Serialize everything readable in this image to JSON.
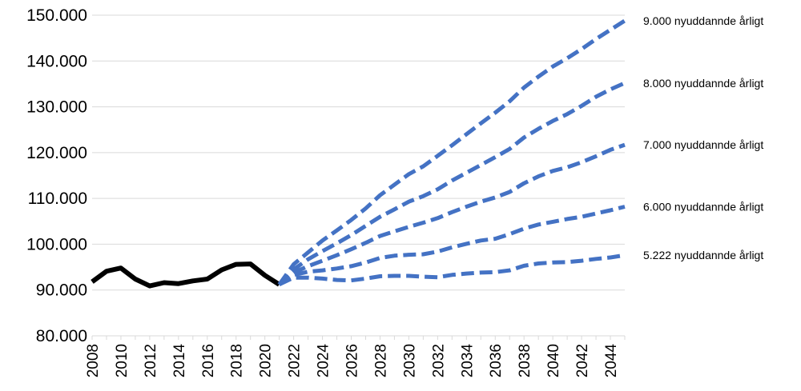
{
  "chart_data": {
    "type": "line",
    "title": "",
    "xlabel": "",
    "ylabel": "",
    "xlim": [
      2008,
      2045
    ],
    "ylim": [
      80000,
      150000
    ],
    "y_ticks": [
      80000,
      90000,
      100000,
      110000,
      120000,
      130000,
      140000,
      150000
    ],
    "y_tick_labels": [
      "80.000",
      "90.000",
      "100.000",
      "110.000",
      "120.000",
      "130.000",
      "140.000",
      "150.000"
    ],
    "x_ticks": [
      2008,
      2010,
      2012,
      2014,
      2016,
      2018,
      2020,
      2022,
      2024,
      2026,
      2028,
      2030,
      2032,
      2034,
      2036,
      2038,
      2040,
      2042,
      2044
    ],
    "grid": true,
    "legend": "none",
    "colors": {
      "history": "#000000",
      "projection": "#4472C4",
      "grid": "#D9D9D9"
    },
    "series": [
      {
        "style": "solid",
        "x": [
          2008,
          2009,
          2010,
          2011,
          2012,
          2013,
          2014,
          2015,
          2016,
          2017,
          2018,
          2019,
          2020,
          2021
        ],
        "values": [
          91800,
          94100,
          94800,
          92400,
          90900,
          91600,
          91400,
          92000,
          92400,
          94400,
          95600,
          95700,
          93200,
          91200
        ]
      },
      {
        "name": "9.000 nyuddannde årligt",
        "style": "dashed",
        "x": [
          2021,
          2022,
          2023,
          2024,
          2025,
          2026,
          2027,
          2028,
          2029,
          2030,
          2031,
          2032,
          2033,
          2034,
          2035,
          2036,
          2037,
          2038,
          2039,
          2040,
          2041,
          2042,
          2043,
          2044,
          2045
        ],
        "values": [
          91200,
          95600,
          98200,
          100800,
          103000,
          105300,
          107800,
          110700,
          113000,
          115300,
          117000,
          119300,
          121600,
          124000,
          126400,
          128700,
          131200,
          134200,
          136600,
          138800,
          140600,
          142600,
          144800,
          146800,
          148800
        ]
      },
      {
        "name": "8.000 nyuddannde årligt",
        "style": "dashed",
        "x": [
          2021,
          2022,
          2023,
          2024,
          2025,
          2026,
          2027,
          2028,
          2029,
          2030,
          2031,
          2032,
          2033,
          2034,
          2035,
          2036,
          2037,
          2038,
          2039,
          2040,
          2041,
          2042,
          2043,
          2044,
          2045
        ],
        "values": [
          91200,
          94500,
          96700,
          98500,
          100200,
          102000,
          104000,
          106000,
          107600,
          109300,
          110500,
          112000,
          113900,
          115600,
          117300,
          119000,
          120800,
          123300,
          125200,
          126900,
          128400,
          130200,
          132200,
          133800,
          135200
        ]
      },
      {
        "name": "7.000 nyuddannde årligt",
        "style": "dashed",
        "x": [
          2021,
          2022,
          2023,
          2024,
          2025,
          2026,
          2027,
          2028,
          2029,
          2030,
          2031,
          2032,
          2033,
          2034,
          2035,
          2036,
          2037,
          2038,
          2039,
          2040,
          2041,
          2042,
          2043,
          2044,
          2045
        ],
        "values": [
          91200,
          93800,
          95200,
          96400,
          97600,
          98900,
          100300,
          101800,
          102800,
          103800,
          104700,
          105700,
          107000,
          108200,
          109300,
          110200,
          111400,
          113300,
          114800,
          116000,
          116800,
          117900,
          119200,
          120600,
          121700
        ]
      },
      {
        "name": "6.000 nyuddannde årligt",
        "style": "dashed",
        "x": [
          2021,
          2022,
          2023,
          2024,
          2025,
          2026,
          2027,
          2028,
          2029,
          2030,
          2031,
          2032,
          2033,
          2034,
          2035,
          2036,
          2037,
          2038,
          2039,
          2040,
          2041,
          2042,
          2043,
          2044,
          2045
        ],
        "values": [
          91200,
          93300,
          94000,
          94300,
          94700,
          95200,
          96000,
          97000,
          97500,
          97700,
          97800,
          98400,
          99300,
          100100,
          100800,
          101200,
          102200,
          103400,
          104300,
          104900,
          105500,
          106000,
          106700,
          107400,
          108200
        ]
      },
      {
        "name": "5.222 nyuddannde årligt",
        "style": "dashed",
        "x": [
          2021,
          2022,
          2023,
          2024,
          2025,
          2026,
          2027,
          2028,
          2029,
          2030,
          2031,
          2032,
          2033,
          2034,
          2035,
          2036,
          2037,
          2038,
          2039,
          2040,
          2041,
          2042,
          2043,
          2044,
          2045
        ],
        "values": [
          91200,
          92700,
          92700,
          92500,
          92200,
          92100,
          92500,
          93000,
          93100,
          93100,
          92900,
          92800,
          93300,
          93600,
          93800,
          93900,
          94300,
          95300,
          95800,
          96000,
          96100,
          96400,
          96800,
          97100,
          97600
        ]
      }
    ]
  }
}
